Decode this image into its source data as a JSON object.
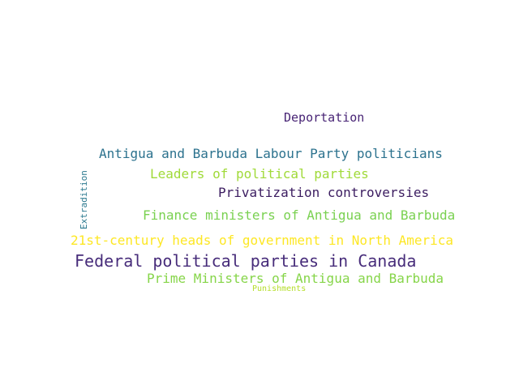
{
  "words": [
    {
      "key": "deportation",
      "text": "Deportation",
      "color": "#482475"
    },
    {
      "key": "antigua_labour",
      "text": "Antigua and Barbuda Labour Party politicians",
      "color": "#2c728e"
    },
    {
      "key": "leaders",
      "text": "Leaders of political parties",
      "color": "#a0da39"
    },
    {
      "key": "privatization",
      "text": "Privatization controversies",
      "color": "#3b1c60"
    },
    {
      "key": "finance",
      "text": "Finance ministers of Antigua and Barbuda",
      "color": "#7ad151"
    },
    {
      "key": "twentyfirst",
      "text": "21st-century heads of government in North America",
      "color": "#fde725"
    },
    {
      "key": "federal",
      "text": "Federal political parties in Canada",
      "color": "#472c7a"
    },
    {
      "key": "prime",
      "text": "Prime Ministers of Antigua and Barbuda",
      "color": "#86d549"
    },
    {
      "key": "punishments",
      "text": "Punishments",
      "color": "#b5de2b"
    },
    {
      "key": "extradition",
      "text": "Extradition",
      "color": "#2a788e"
    }
  ]
}
